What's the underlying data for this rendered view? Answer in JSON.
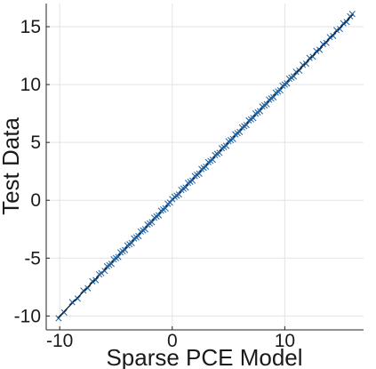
{
  "chart_data": {
    "type": "scatter",
    "title": "",
    "xlabel": "Sparse PCE Model",
    "ylabel": "Test Data",
    "xlim": [
      -11.2,
      17.0
    ],
    "ylim": [
      -11.2,
      17.0
    ],
    "xticks": [
      -10,
      0,
      10
    ],
    "yticks": [
      -10,
      -5,
      0,
      5,
      10,
      15
    ],
    "grid": true,
    "legend": "none",
    "marker": "x",
    "marker_color": "#1f5f9f",
    "reference_line": {
      "from": [
        -10.2,
        -10.2
      ],
      "to": [
        16.1,
        16.1
      ],
      "color": "#000000"
    },
    "series": [
      {
        "x": [
          -10.1,
          -9.6,
          -8.9,
          -8.4,
          -7.9,
          -7.5,
          -7.1,
          -6.8,
          -6.5,
          -6.3,
          -6.0,
          -5.8,
          -5.6,
          -5.4,
          -5.2,
          -5.0,
          -4.8,
          -4.6,
          -4.4,
          -4.2,
          -4.0,
          -3.8,
          -3.6,
          -3.4,
          -3.2,
          -3.0,
          -2.8,
          -2.6,
          -2.4,
          -2.2,
          -2.0,
          -1.8,
          -1.6,
          -1.4,
          -1.2,
          -1.0,
          -0.8,
          -0.6,
          -0.4,
          -0.2,
          0.0,
          0.2,
          0.4,
          0.6,
          0.8,
          1.0,
          1.2,
          1.4,
          1.6,
          1.8,
          2.0,
          2.2,
          2.4,
          2.6,
          2.8,
          3.0,
          3.2,
          3.4,
          3.6,
          3.8,
          4.0,
          4.2,
          4.4,
          4.6,
          4.8,
          5.0,
          5.2,
          5.4,
          5.6,
          5.8,
          6.0,
          6.2,
          6.4,
          6.6,
          6.8,
          7.0,
          7.2,
          7.4,
          7.6,
          7.8,
          8.0,
          8.2,
          8.4,
          8.6,
          8.8,
          9.0,
          9.2,
          9.4,
          9.6,
          9.8,
          10.0,
          10.2,
          10.4,
          10.6,
          10.8,
          11.0,
          11.3,
          11.6,
          11.9,
          12.2,
          12.5,
          12.8,
          13.1,
          13.4,
          13.7,
          14.0,
          14.3,
          14.6,
          14.9,
          15.2,
          15.5,
          15.8,
          16.0
        ],
        "y": [
          -10.2,
          -9.7,
          -8.8,
          -8.5,
          -7.8,
          -7.6,
          -7.0,
          -6.9,
          -6.4,
          -6.3,
          -6.1,
          -5.7,
          -5.6,
          -5.5,
          -5.1,
          -5.0,
          -4.9,
          -4.5,
          -4.4,
          -4.3,
          -3.9,
          -3.8,
          -3.7,
          -3.3,
          -3.2,
          -3.1,
          -2.7,
          -2.6,
          -2.5,
          -2.1,
          -2.0,
          -1.9,
          -1.5,
          -1.4,
          -1.3,
          -0.9,
          -0.8,
          -0.7,
          -0.3,
          -0.2,
          0.1,
          0.3,
          0.4,
          0.5,
          0.9,
          1.0,
          1.1,
          1.5,
          1.6,
          1.7,
          2.1,
          2.2,
          2.3,
          2.7,
          2.8,
          2.9,
          3.3,
          3.4,
          3.5,
          3.9,
          4.0,
          4.1,
          4.5,
          4.6,
          4.7,
          5.1,
          5.2,
          5.3,
          5.7,
          5.8,
          5.9,
          6.3,
          6.4,
          6.5,
          6.9,
          7.0,
          7.1,
          7.5,
          7.6,
          7.7,
          8.1,
          8.2,
          8.3,
          8.7,
          8.8,
          8.9,
          9.3,
          9.4,
          9.5,
          9.9,
          10.0,
          10.1,
          10.5,
          10.6,
          10.7,
          11.1,
          11.2,
          11.7,
          11.8,
          12.3,
          12.4,
          12.9,
          13.0,
          13.5,
          13.6,
          14.1,
          14.2,
          14.7,
          14.8,
          15.3,
          15.4,
          15.9,
          16.1
        ]
      }
    ]
  }
}
